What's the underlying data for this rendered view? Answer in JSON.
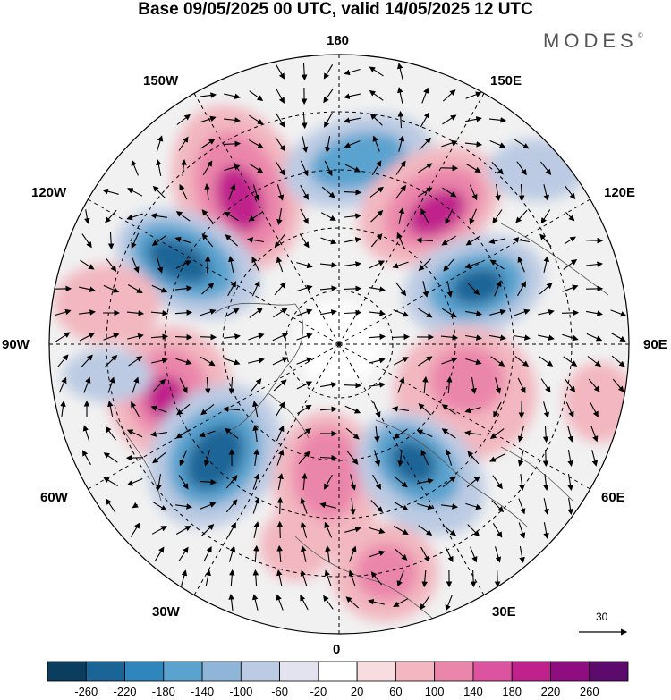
{
  "title": "Base 09/05/2025 00 UTC, valid 14/05/2025 12 UTC",
  "brand": "MODES",
  "brand_mark": "©",
  "longitude_labels": {
    "top": "180",
    "bottom": "0",
    "left": "90W",
    "right": "90E",
    "upper_left_outer": "120W",
    "upper_left_inner": "150W",
    "upper_right_inner": "150E",
    "upper_right_outer": "120E",
    "lower_left_outer": "60W",
    "lower_left_inner": "30W",
    "lower_right_inner": "30E",
    "lower_right_outer": "60E"
  },
  "reference_vector": "30",
  "colorbar": {
    "colors": [
      "#0b3d5e",
      "#1a6596",
      "#2f86bd",
      "#5aa3cf",
      "#8fb6d8",
      "#bccbe3",
      "#e2e3ef",
      "#ffffff",
      "#f8dde0",
      "#f2b7c0",
      "#eb86ab",
      "#dc53a0",
      "#c0228c",
      "#8e0d7f",
      "#5c0a6b"
    ],
    "labels": [
      "-260",
      "-220",
      "-180",
      "-140",
      "-100",
      "-60",
      "-20",
      "20",
      "60",
      "100",
      "140",
      "180",
      "220",
      "260"
    ]
  },
  "anomaly_colors": {
    "neg_strong": "#1a6596",
    "neg_mid": "#5aa3cf",
    "neg_weak": "#bccbe3",
    "pos_weak": "#f2b7c0",
    "pos_mid": "#eb86ab",
    "pos_strong": "#c0228c"
  }
}
